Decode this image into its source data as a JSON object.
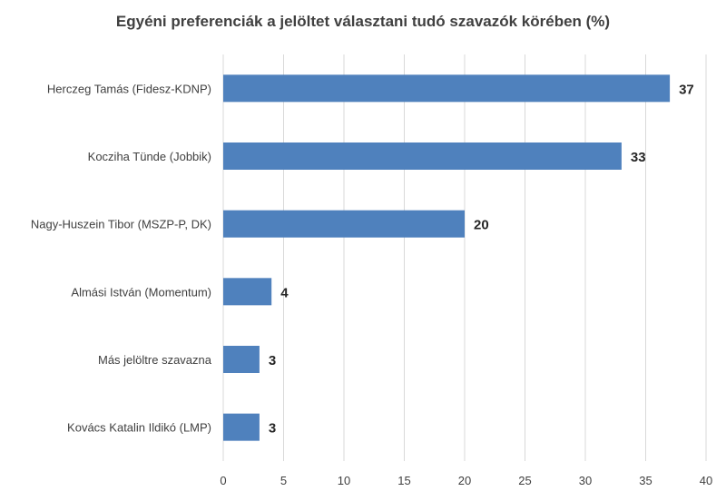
{
  "chart_data": {
    "type": "bar",
    "orientation": "horizontal",
    "title": "Egyéni preferenciák a jelöltet választani tudó szavazók körében (%)",
    "categories": [
      "Herczeg Tamás (Fidesz-KDNP)",
      "Kocziha Tünde (Jobbik)",
      "Nagy-Huszein Tibor (MSZP-P, DK)",
      "Almási István (Momentum)",
      "Más jelöltre szavazna",
      "Kovács Katalin Ildikó (LMP)"
    ],
    "values": [
      37,
      33,
      20,
      4,
      3,
      3
    ],
    "xlim": [
      0,
      40
    ],
    "xticks": [
      0,
      5,
      10,
      15,
      20,
      25,
      30,
      35,
      40
    ],
    "grid": true,
    "bar_color": "#4f81bd"
  }
}
